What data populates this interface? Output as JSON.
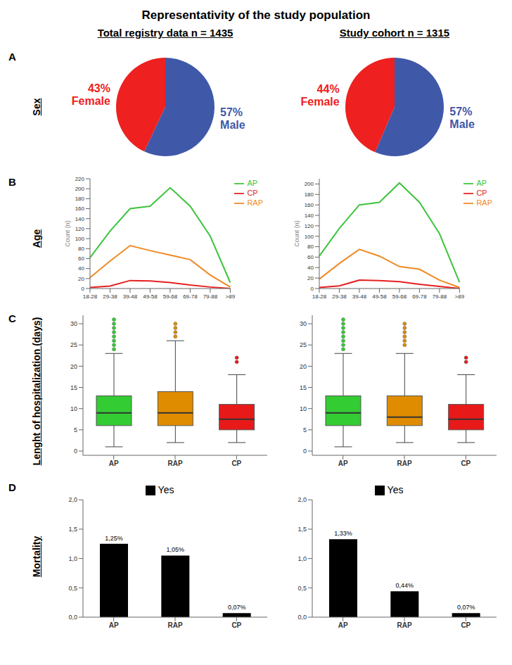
{
  "title": "Representativity of the study population",
  "columns": [
    "Total registry data n = 1435",
    "Study cohort n = 1315"
  ],
  "rows": [
    {
      "letter": "A",
      "label": "Sex"
    },
    {
      "letter": "B",
      "label": "Age"
    },
    {
      "letter": "C",
      "label": "Lenght of hospitalization (days)"
    },
    {
      "letter": "D",
      "label": "Mortality"
    }
  ],
  "chart_data": [
    {
      "type": "pie",
      "categories": [
        "Female",
        "Male"
      ],
      "values": [
        43,
        57
      ],
      "value_labels": [
        "43%",
        "57%"
      ],
      "colors": [
        "#ee2020",
        "#3f58a8"
      ]
    },
    {
      "type": "pie",
      "categories": [
        "Female",
        "Male"
      ],
      "values": [
        44,
        57
      ],
      "value_labels": [
        "44%",
        "57%"
      ],
      "colors": [
        "#ee2020",
        "#3f58a8"
      ]
    },
    {
      "type": "line",
      "categories": [
        "18-28",
        "29-38",
        "39-48",
        "49-58",
        "59-68",
        "69-78",
        "79-88",
        ">89"
      ],
      "series": [
        {
          "name": "AP",
          "color": "#3ec43e",
          "values": [
            62,
            115,
            160,
            165,
            202,
            165,
            105,
            12
          ]
        },
        {
          "name": "RAP",
          "color": "#f08a24",
          "values": [
            22,
            55,
            86,
            76,
            67,
            58,
            27,
            3
          ]
        },
        {
          "name": "CP",
          "color": "#e52020",
          "values": [
            2,
            5,
            16,
            15,
            12,
            7,
            3,
            0
          ]
        }
      ],
      "ylim": [
        0,
        220
      ],
      "yticks": [
        0,
        20,
        40,
        60,
        80,
        100,
        120,
        140,
        160,
        180,
        200,
        220
      ],
      "y_label": "Count (n)",
      "legend": "right"
    },
    {
      "type": "line",
      "categories": [
        "18-28",
        "29-38",
        "39-48",
        "49-58",
        "59-68",
        "69-78",
        "79-88",
        ">89"
      ],
      "series": [
        {
          "name": "AP",
          "color": "#3ec43e",
          "values": [
            62,
            115,
            160,
            165,
            202,
            165,
            105,
            12
          ]
        },
        {
          "name": "RAP",
          "color": "#f08a24",
          "values": [
            18,
            48,
            75,
            62,
            42,
            37,
            16,
            2
          ]
        },
        {
          "name": "CP",
          "color": "#e52020",
          "values": [
            2,
            5,
            16,
            15,
            13,
            8,
            4,
            0
          ]
        }
      ],
      "ylim": [
        0,
        210
      ],
      "yticks": [
        0,
        20,
        40,
        60,
        80,
        100,
        120,
        140,
        160,
        180,
        200
      ],
      "y_label": "Count (n)",
      "legend": "right"
    },
    {
      "type": "box",
      "categories": [
        "AP",
        "RAP",
        "CP"
      ],
      "colors": [
        "#33cc33",
        "#e08c00",
        "#e81919"
      ],
      "boxes": [
        {
          "min": 1,
          "q1": 6,
          "median": 9,
          "q3": 13,
          "max": 23,
          "outliers": [
            24,
            25,
            26,
            27,
            28,
            29,
            30,
            31
          ]
        },
        {
          "min": 2,
          "q1": 6,
          "median": 9,
          "q3": 14,
          "max": 26,
          "outliers": [
            27,
            28,
            29,
            30
          ]
        },
        {
          "min": 2,
          "q1": 5,
          "median": 7.5,
          "q3": 11,
          "max": 18,
          "outliers": [
            21,
            22
          ]
        }
      ],
      "ylim": [
        -1,
        32
      ],
      "yticks": [
        0,
        5,
        10,
        15,
        20,
        25,
        30
      ]
    },
    {
      "type": "box",
      "categories": [
        "AP",
        "RAP",
        "CP"
      ],
      "colors": [
        "#33cc33",
        "#e08c00",
        "#e81919"
      ],
      "boxes": [
        {
          "min": 1,
          "q1": 6,
          "median": 9,
          "q3": 13,
          "max": 23,
          "outliers": [
            24,
            25,
            26,
            27,
            28,
            29,
            30,
            31
          ]
        },
        {
          "min": 2,
          "q1": 6,
          "median": 8,
          "q3": 13,
          "max": 23,
          "outliers": [
            25,
            26,
            27,
            28,
            29,
            30
          ]
        },
        {
          "min": 2,
          "q1": 5,
          "median": 7.5,
          "q3": 11,
          "max": 18,
          "outliers": [
            21,
            22
          ]
        }
      ],
      "ylim": [
        -1,
        32
      ],
      "yticks": [
        0,
        5,
        10,
        15,
        20,
        25,
        30
      ]
    },
    {
      "type": "bar",
      "categories": [
        "AP",
        "RAP",
        "CP"
      ],
      "series": [
        {
          "name": "Yes",
          "color": "#000000",
          "values": [
            1.25,
            1.05,
            0.07
          ],
          "value_labels": [
            "1,25%",
            "1,05%",
            "0,07%"
          ]
        }
      ],
      "ylim": [
        0,
        2
      ],
      "yticks": [
        {
          "value": 0,
          "label": "0,0"
        },
        {
          "value": 0.5,
          "label": "0,5"
        },
        {
          "value": 1,
          "label": "1,0"
        },
        {
          "value": 1.5,
          "label": "1,5"
        },
        {
          "value": 2,
          "label": "2,0"
        }
      ],
      "data_labels": true,
      "legend": "top"
    },
    {
      "type": "bar",
      "categories": [
        "AP",
        "RAP",
        "CP"
      ],
      "series": [
        {
          "name": "Yes",
          "color": "#000000",
          "values": [
            1.33,
            0.44,
            0.07
          ],
          "value_labels": [
            "1,33%",
            "0,44%",
            "0,07%"
          ]
        }
      ],
      "ylim": [
        0,
        2
      ],
      "yticks": [
        {
          "value": 0,
          "label": "0,0"
        },
        {
          "value": 0.5,
          "label": "0,5"
        },
        {
          "value": 1,
          "label": "1,0"
        },
        {
          "value": 1.5,
          "label": "1,5"
        },
        {
          "value": 2,
          "label": "2,0"
        }
      ],
      "data_labels": true,
      "legend": "top"
    }
  ]
}
